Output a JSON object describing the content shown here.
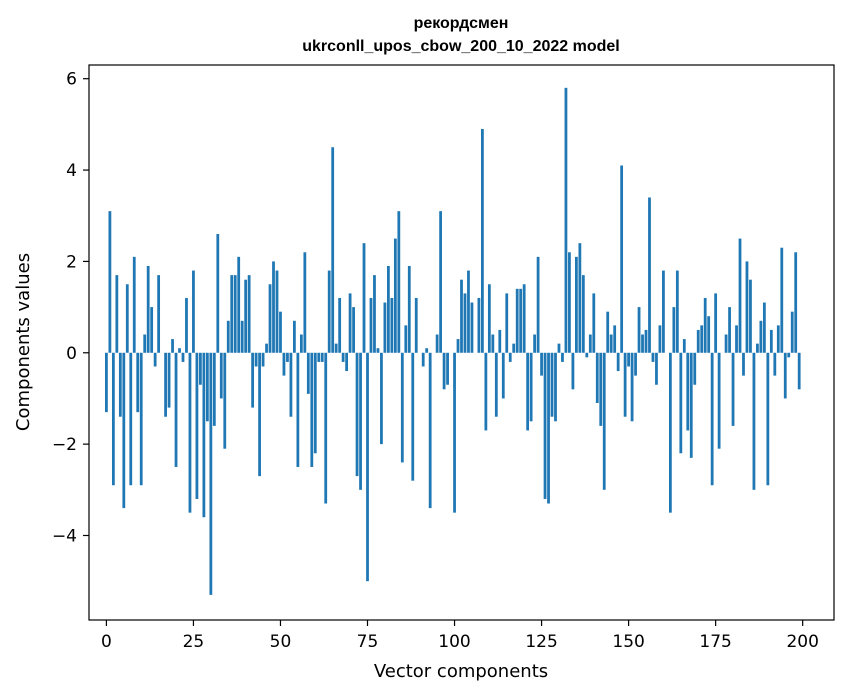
{
  "chart_data": {
    "type": "bar",
    "title_line1": "рекордсмен",
    "title_line2": "ukrconll_upos_cbow_200_10_2022 model",
    "xlabel": "Vector components",
    "ylabel": "Components values",
    "xlim": [
      -5,
      209
    ],
    "ylim": [
      -5.85,
      6.3
    ],
    "xticks": [
      0,
      25,
      50,
      75,
      100,
      125,
      150,
      175,
      200
    ],
    "yticks": [
      -4,
      -2,
      0,
      2,
      4,
      6
    ],
    "ytick_labels": [
      "−4",
      "−2",
      "0",
      "2",
      "4",
      "6"
    ],
    "grid": false,
    "bar_color": "#1f77b4",
    "values": [
      -1.3,
      3.1,
      -2.9,
      1.7,
      -1.4,
      -3.4,
      1.5,
      -2.9,
      2.1,
      -1.3,
      -2.9,
      0.4,
      1.9,
      1.0,
      -0.3,
      1.7,
      0.0,
      -1.4,
      -1.2,
      0.3,
      -2.5,
      0.1,
      -0.2,
      1.2,
      -3.5,
      1.8,
      -3.2,
      -0.7,
      -3.6,
      -1.5,
      -5.3,
      -1.6,
      2.6,
      -1.0,
      -2.1,
      0.7,
      1.7,
      1.7,
      2.1,
      0.7,
      1.6,
      1.7,
      -1.2,
      -0.3,
      -2.7,
      -0.3,
      0.2,
      1.5,
      2.0,
      1.8,
      0.9,
      -0.5,
      -0.2,
      -1.4,
      0.7,
      -2.5,
      0.4,
      2.2,
      -0.9,
      -2.5,
      -2.2,
      -0.2,
      -0.2,
      -3.3,
      1.8,
      4.5,
      0.2,
      1.2,
      -0.2,
      -0.4,
      1.3,
      1.0,
      -2.7,
      -3.0,
      2.4,
      -5.0,
      1.2,
      1.7,
      0.1,
      -2.0,
      1.1,
      1.9,
      1.2,
      2.5,
      3.1,
      -2.4,
      0.6,
      1.9,
      -2.8,
      1.2,
      0.0,
      -0.3,
      0.1,
      -3.4,
      0.0,
      0.4,
      3.1,
      -0.8,
      -0.7,
      0.0,
      -3.5,
      0.3,
      1.6,
      1.3,
      1.8,
      1.1,
      0.0,
      1.2,
      4.9,
      -1.7,
      1.5,
      0.4,
      -1.4,
      0.5,
      -1.0,
      1.3,
      -0.2,
      0.2,
      1.4,
      1.4,
      1.5,
      -1.7,
      -1.5,
      0.4,
      2.1,
      -0.5,
      -3.2,
      -3.3,
      -1.4,
      -1.5,
      0.2,
      -0.2,
      5.8,
      2.2,
      -0.8,
      2.1,
      2.4,
      1.7,
      -0.1,
      0.4,
      1.3,
      -1.1,
      -1.6,
      -3.0,
      0.9,
      0.4,
      0.6,
      -0.4,
      4.1,
      -1.4,
      -0.3,
      -1.5,
      -0.5,
      1.0,
      0.4,
      0.5,
      3.4,
      -0.2,
      -0.7,
      0.6,
      1.8,
      0.0,
      -3.5,
      1.0,
      1.8,
      -2.2,
      0.3,
      -1.7,
      -2.3,
      -0.7,
      0.5,
      0.6,
      1.2,
      0.8,
      -2.9,
      1.3,
      -2.1,
      0.0,
      0.4,
      1.0,
      -1.6,
      0.6,
      2.5,
      -0.5,
      2.0,
      1.6,
      -3.0,
      0.2,
      0.7,
      1.1,
      -2.9,
      0.5,
      -0.5,
      0.6,
      2.3,
      -1.0,
      -0.1,
      0.9,
      2.2,
      -0.8
    ]
  }
}
